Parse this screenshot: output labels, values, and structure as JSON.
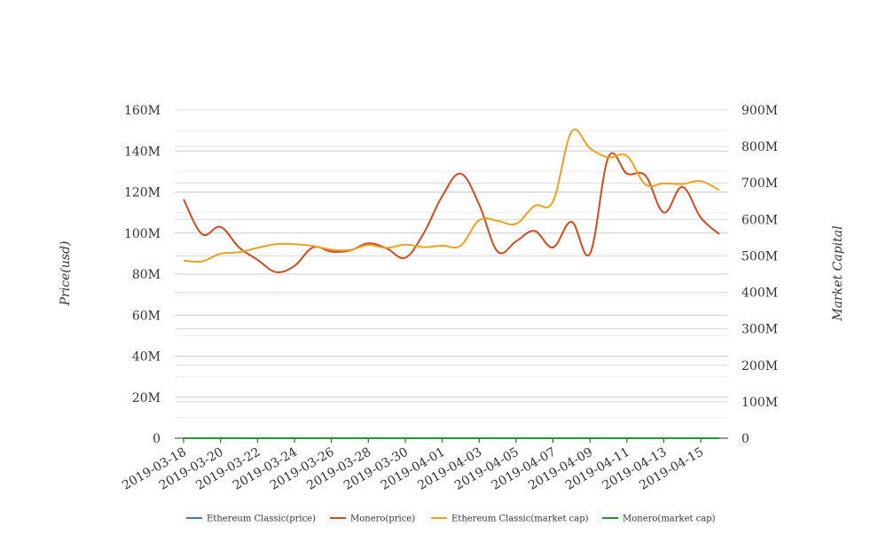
{
  "chart_data": {
    "type": "line",
    "title": "",
    "x": [
      "2019-03-18",
      "2019-03-19",
      "2019-03-20",
      "2019-03-21",
      "2019-03-22",
      "2019-03-23",
      "2019-03-24",
      "2019-03-25",
      "2019-03-26",
      "2019-03-27",
      "2019-03-28",
      "2019-03-29",
      "2019-03-30",
      "2019-03-31",
      "2019-04-01",
      "2019-04-02",
      "2019-04-03",
      "2019-04-04",
      "2019-04-05",
      "2019-04-06",
      "2019-04-07",
      "2019-04-08",
      "2019-04-09",
      "2019-04-10",
      "2019-04-11",
      "2019-04-12",
      "2019-04-13",
      "2019-04-14",
      "2019-04-15",
      "2019-04-16"
    ],
    "x_tick_labels": [
      "2019-03-18",
      "2019-03-20",
      "2019-03-22",
      "2019-03-24",
      "2019-03-26",
      "2019-03-28",
      "2019-03-30",
      "2019-04-01",
      "2019-04-03",
      "2019-04-05",
      "2019-04-07",
      "2019-04-09",
      "2019-04-11",
      "2019-04-13",
      "2019-04-15"
    ],
    "ylabel_left": "Price(usd)",
    "ylabel_right": "Market Capital",
    "ylim_left": [
      0,
      160000000
    ],
    "ylim_right": [
      0,
      900000000
    ],
    "y_ticks_left": [
      "0",
      "20M",
      "40M",
      "60M",
      "80M",
      "100M",
      "120M",
      "140M",
      "160M"
    ],
    "y_ticks_right": [
      "0",
      "100M",
      "200M",
      "300M",
      "400M",
      "500M",
      "600M",
      "700M",
      "800M",
      "900M"
    ],
    "grid": true,
    "legend_position": "bottom",
    "series": [
      {
        "name": "Ethereum Classic(price)",
        "axis": "left",
        "color": "#4472c4",
        "values": [
          4.5,
          4.5,
          4.5,
          4.5,
          4.5,
          4.5,
          4.5,
          4.5,
          4.5,
          4.5,
          4.5,
          4.5,
          4.5,
          4.5,
          4.5,
          4.5,
          4.5,
          4.5,
          4.5,
          4.5,
          4.5,
          4.5,
          4.5,
          4.5,
          4.5,
          4.5,
          4.5,
          4.5,
          4.5,
          4.5
        ]
      },
      {
        "name": "Monero(price)",
        "axis": "left",
        "color": "#d14a20",
        "values": [
          116500000,
          99500000,
          103000000,
          93000000,
          87000000,
          81000000,
          84000000,
          93000000,
          91000000,
          91500000,
          95000000,
          92500000,
          88000000,
          100000000,
          118000000,
          129000000,
          114000000,
          91000000,
          96000000,
          101000000,
          93000000,
          105500000,
          90000000,
          137000000,
          129000000,
          128000000,
          110000000,
          122500000,
          107500000,
          99500000
        ]
      },
      {
        "name": "Ethereum Classic(market cap)",
        "axis": "right",
        "color": "#f0a01f",
        "values": [
          487000000,
          485000000,
          506000000,
          510000000,
          522000000,
          532000000,
          532000000,
          527000000,
          517000000,
          516000000,
          530000000,
          522000000,
          531000000,
          524000000,
          528000000,
          528000000,
          598000000,
          596000000,
          588000000,
          637000000,
          650000000,
          840000000,
          795000000,
          770000000,
          774000000,
          696000000,
          699000000,
          697000000,
          705000000,
          680000000
        ]
      },
      {
        "name": "Monero(market cap)",
        "axis": "right",
        "color": "#1e9a2c",
        "values": [
          25,
          25,
          25,
          25,
          25,
          25,
          25,
          25,
          25,
          25,
          25,
          25,
          25,
          25,
          25,
          25,
          25,
          25,
          25,
          25,
          25,
          25,
          25,
          25,
          25,
          25,
          25,
          25,
          25,
          25
        ]
      }
    ]
  }
}
